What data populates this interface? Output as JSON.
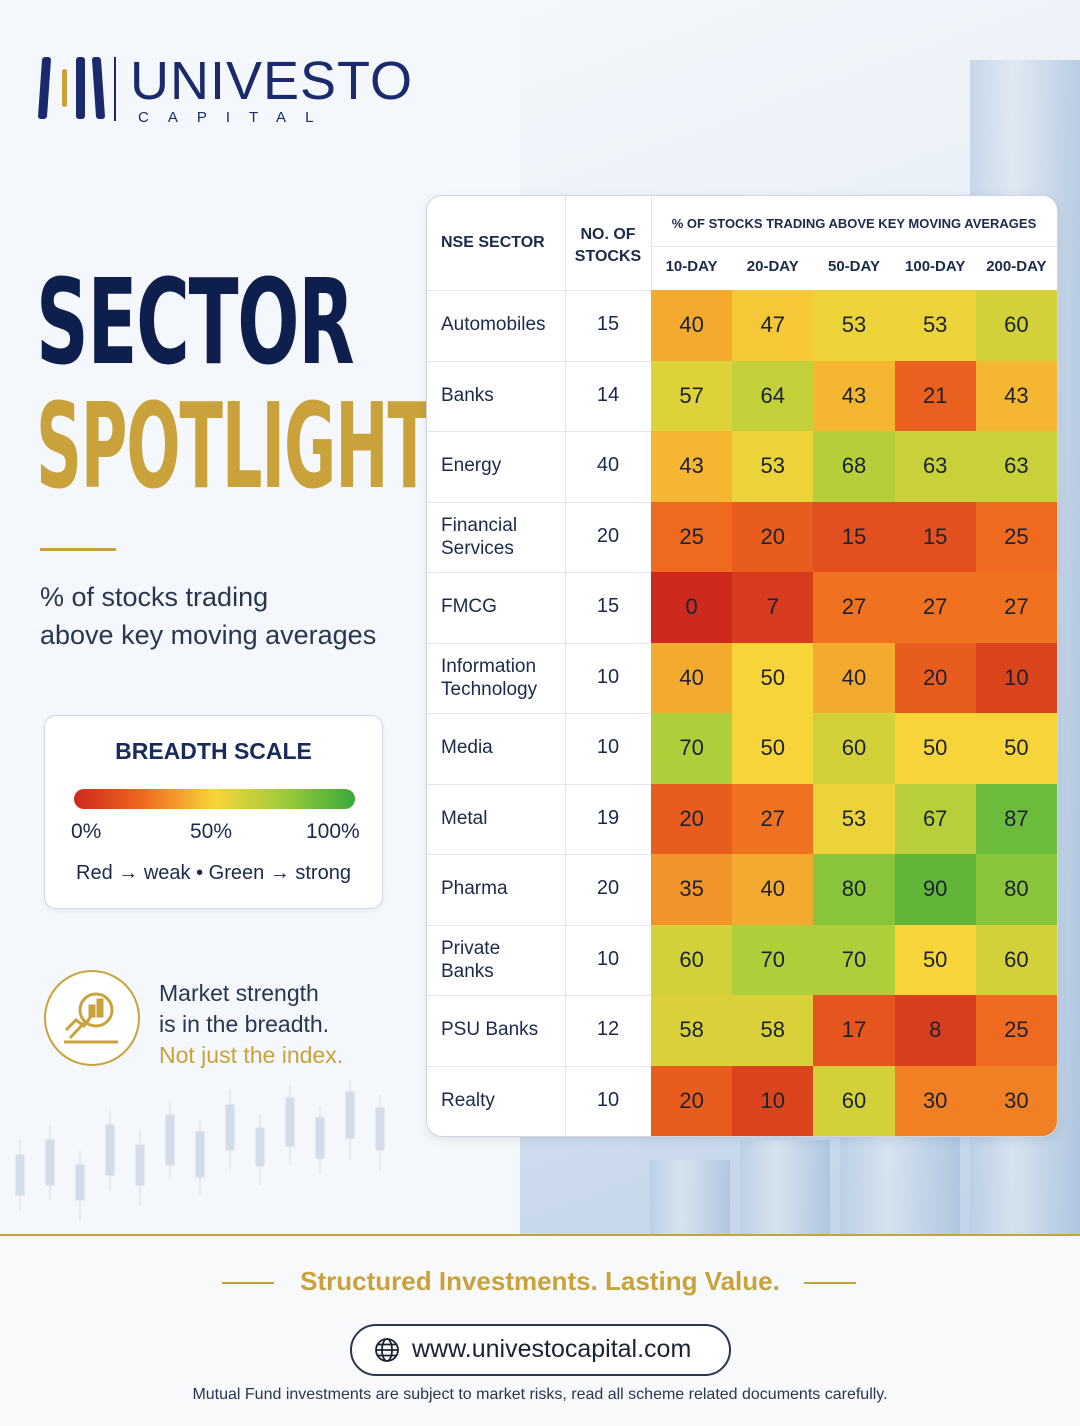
{
  "brand": {
    "name": "UNIVESTO",
    "sub": "CAPITAL"
  },
  "hero": {
    "title_line1": "SECTOR",
    "title_line2": "SPOTLIGHT",
    "subtitle_line1": "% of stocks trading",
    "subtitle_line2": "above key moving averages"
  },
  "breadth_scale": {
    "title": "BREADTH SCALE",
    "tick_0": "0%",
    "tick_50": "50%",
    "tick_100": "100%",
    "legend": "Red → weak  •  Green → strong"
  },
  "strength_note": {
    "line1": "Market strength",
    "line2": "is in the breadth.",
    "line3": "Not just the index."
  },
  "chart_data": {
    "type": "heatmap",
    "title": "% OF STOCKS TRADING ABOVE KEY MOVING AVERAGES",
    "row_header": "NSE SECTOR",
    "count_header_line1": "NO. OF",
    "count_header_line2": "STOCKS",
    "columns": [
      "10-DAY",
      "20-DAY",
      "50-DAY",
      "100-DAY",
      "200-DAY"
    ],
    "value_range": [
      0,
      100
    ],
    "rows": [
      {
        "sector_line1": "Automobiles",
        "sector_line2": "",
        "stocks": "15",
        "values": [
          40,
          47,
          53,
          53,
          60
        ]
      },
      {
        "sector_line1": "Banks",
        "sector_line2": "",
        "stocks": "14",
        "values": [
          57,
          64,
          43,
          21,
          43
        ]
      },
      {
        "sector_line1": "Energy",
        "sector_line2": "",
        "stocks": "40",
        "values": [
          43,
          53,
          68,
          63,
          63
        ]
      },
      {
        "sector_line1": "Financial",
        "sector_line2": "Services",
        "stocks": "20",
        "values": [
          25,
          20,
          15,
          15,
          25
        ]
      },
      {
        "sector_line1": "FMCG",
        "sector_line2": "",
        "stocks": "15",
        "values": [
          0,
          7,
          27,
          27,
          27
        ]
      },
      {
        "sector_line1": "Information",
        "sector_line2": "Technology",
        "stocks": "10",
        "values": [
          40,
          50,
          40,
          20,
          10
        ]
      },
      {
        "sector_line1": "Media",
        "sector_line2": "",
        "stocks": "10",
        "values": [
          70,
          50,
          60,
          50,
          50
        ]
      },
      {
        "sector_line1": "Metal",
        "sector_line2": "",
        "stocks": "19",
        "values": [
          20,
          27,
          53,
          67,
          87
        ]
      },
      {
        "sector_line1": "Pharma",
        "sector_line2": "",
        "stocks": "20",
        "values": [
          35,
          40,
          80,
          90,
          80
        ]
      },
      {
        "sector_line1": "Private",
        "sector_line2": "Banks",
        "stocks": "10",
        "values": [
          60,
          70,
          70,
          50,
          60
        ]
      },
      {
        "sector_line1": "PSU Banks",
        "sector_line2": "",
        "stocks": "12",
        "values": [
          58,
          58,
          17,
          8,
          25
        ]
      },
      {
        "sector_line1": "Realty",
        "sector_line2": "",
        "stocks": "10",
        "values": [
          20,
          10,
          60,
          30,
          30
        ]
      }
    ],
    "color_scale": [
      "#cc2a1c",
      "#ef6a1f",
      "#f7d43a",
      "#9ccc3a",
      "#3aa83a"
    ]
  },
  "footer": {
    "tagline": "Structured Investments. Lasting Value.",
    "url": "www.univestocapital.com",
    "disclaimer": "Mutual Fund investments are subject to market risks, read all scheme related documents carefully."
  },
  "colors": {
    "navy": "#1a2a6c",
    "gold": "#c9a23c"
  }
}
